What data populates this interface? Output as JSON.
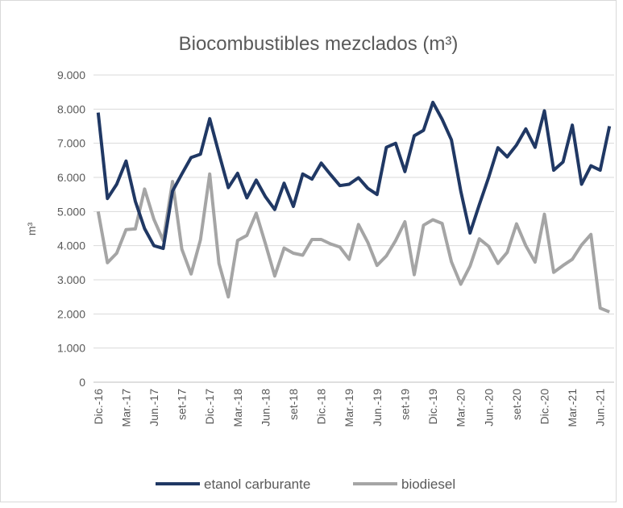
{
  "chart_data": {
    "type": "line",
    "title": "Biocombustibles mezclados (m³)",
    "y_label": "m³",
    "categories": [
      "Dic.-16",
      null,
      null,
      "Mar.-17",
      null,
      null,
      "Jun.-17",
      null,
      null,
      "set-17",
      null,
      null,
      "Dic.-17",
      null,
      null,
      "Mar.-18",
      null,
      null,
      "Jun.-18",
      null,
      null,
      "set-18",
      null,
      null,
      "Dic.-18",
      null,
      null,
      "Mar.-19",
      null,
      null,
      "Jun.-19",
      null,
      null,
      "set-19",
      null,
      null,
      "Dic.-19",
      null,
      null,
      "Mar.-20",
      null,
      null,
      "Jun.-20",
      null,
      null,
      "set-20",
      null,
      null,
      "Dic.-20",
      null,
      null,
      "Mar.-21",
      null,
      null,
      "Jun.-21",
      null
    ],
    "series": [
      {
        "name": "etanol carburante",
        "color": "#203864",
        "values": [
          7900,
          5380,
          5800,
          6480,
          5300,
          4500,
          4000,
          3920,
          5600,
          6100,
          6580,
          6680,
          7720,
          6700,
          5700,
          6120,
          5400,
          5920,
          5430,
          5060,
          5830,
          5150,
          6100,
          5950,
          6420,
          6080,
          5760,
          5800,
          5990,
          5680,
          5500,
          6880,
          7000,
          6170,
          7220,
          7380,
          8200,
          7700,
          7100,
          5600,
          4370,
          5200,
          6000,
          6870,
          6600,
          6950,
          7420,
          6880,
          7950,
          6210,
          6450,
          7530,
          5800,
          6340,
          6210,
          7500
        ]
      },
      {
        "name": "biodiesel",
        "color": "#a5a5a5",
        "values": [
          5000,
          3500,
          3780,
          4470,
          4490,
          5660,
          4770,
          4150,
          5880,
          3900,
          3170,
          4170,
          6100,
          3480,
          2500,
          4150,
          4300,
          4950,
          4050,
          3110,
          3930,
          3780,
          3720,
          4180,
          4180,
          4050,
          3960,
          3600,
          4620,
          4100,
          3420,
          3700,
          4150,
          4700,
          3150,
          4600,
          4760,
          4650,
          3530,
          2870,
          3400,
          4200,
          3980,
          3480,
          3800,
          4640,
          4000,
          3520,
          4920,
          3220,
          3420,
          3600,
          4020,
          4330,
          2170,
          2060
        ]
      }
    ],
    "ylim": [
      0,
      9000
    ],
    "yticks": [
      0,
      {
        "value": 1000,
        "label": "1.000"
      },
      {
        "value": 2000,
        "label": "2.000"
      },
      {
        "value": 3000,
        "label": "3.000"
      },
      {
        "value": 4000,
        "label": "4.000"
      },
      {
        "value": 5000,
        "label": "5.000"
      },
      {
        "value": 6000,
        "label": "6.000"
      },
      {
        "value": 7000,
        "label": "7.000"
      },
      {
        "value": 8000,
        "label": "8.000"
      },
      {
        "value": 9000,
        "label": "9.000"
      }
    ],
    "grid": true,
    "legend": "bottom"
  }
}
